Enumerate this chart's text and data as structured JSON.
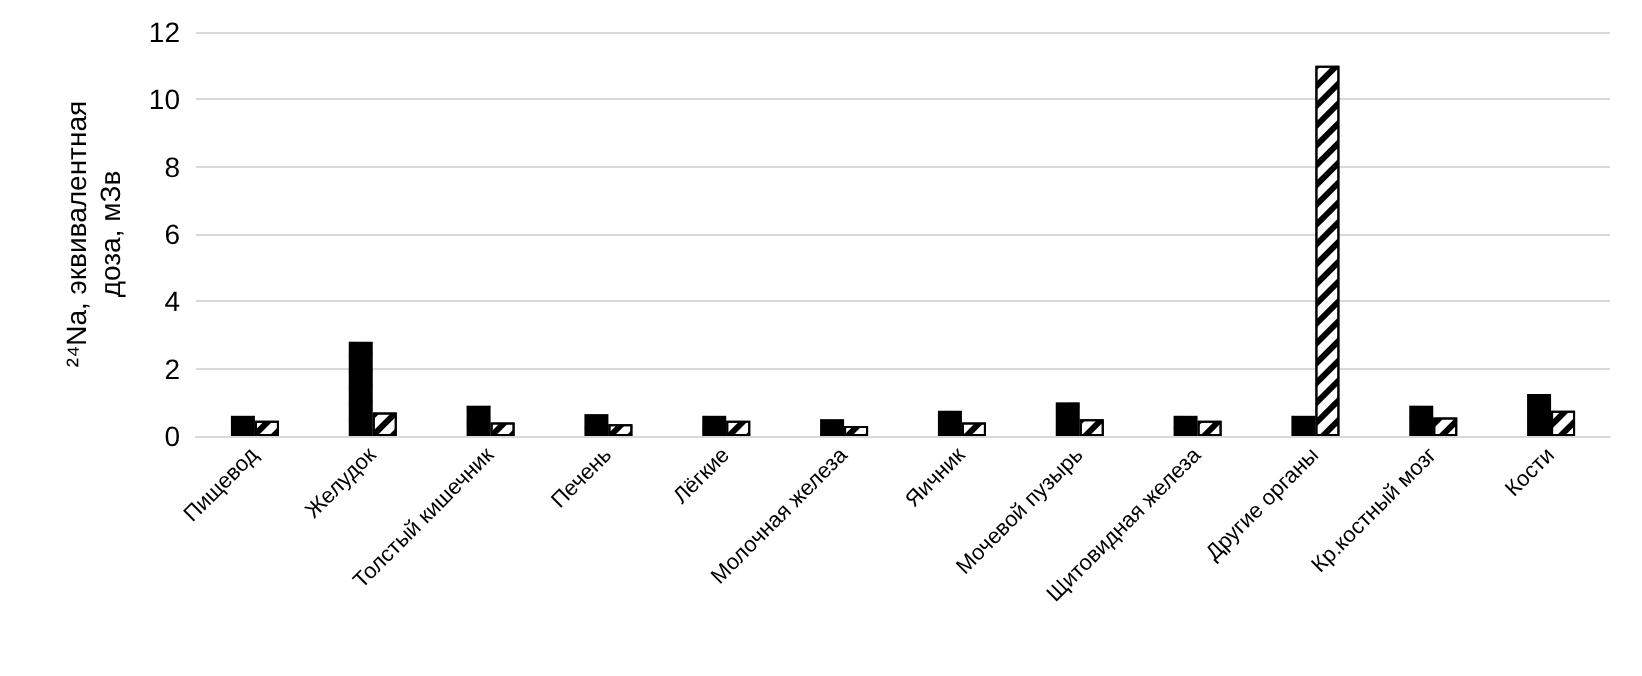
{
  "chart_data": {
    "type": "bar",
    "ylabel": "²⁴Na, эквивалентная доза, мЗв",
    "categories": [
      "Пищевод",
      "Желудок",
      "Толстый кишечник",
      "Печень",
      "Лёгкие",
      "Молочная железа",
      "Яичник",
      "Мочевой пузырь",
      "Щитовидная железа",
      "Другие органы",
      "Кр.костный мозг",
      "Кости"
    ],
    "series": [
      {
        "color": "#000000",
        "values": [
          0.6,
          2.8,
          0.9,
          0.65,
          0.6,
          0.5,
          0.75,
          1.0,
          0.6,
          0.6,
          0.9,
          1.25
        ]
      },
      {
        "color": "#ffffff",
        "values": [
          0.45,
          0.7,
          0.4,
          0.35,
          0.45,
          0.3,
          0.4,
          0.5,
          0.45,
          11.0,
          0.55,
          0.75
        ]
      }
    ],
    "ylim": [
      0,
      12
    ],
    "yticks": [
      0,
      2,
      4,
      6,
      8,
      10,
      12
    ],
    "grid": "y"
  }
}
